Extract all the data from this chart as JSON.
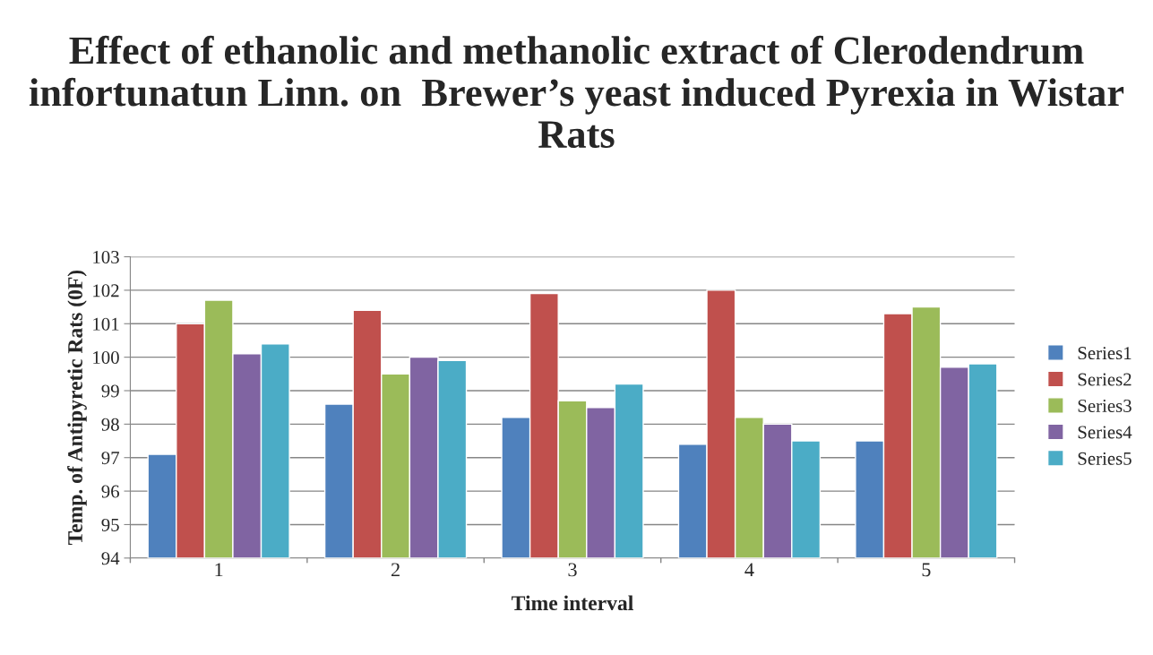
{
  "chart_data": {
    "type": "bar",
    "title": "Effect of ethanolic and methanolic extract of Clerodendrum infortunatun Linn. on  Brewer’s yeast induced Pyrexia in Wistar Rats",
    "xlabel": "Time interval",
    "ylabel": "Temp. of Antipyretic Rats (0F)",
    "categories": [
      "1",
      "2",
      "3",
      "4",
      "5"
    ],
    "series": [
      {
        "name": "Series1",
        "color": "#4f81bd",
        "values": [
          97.1,
          98.6,
          98.2,
          97.4,
          97.5
        ]
      },
      {
        "name": "Series2",
        "color": "#c0504d",
        "values": [
          101.0,
          101.4,
          101.9,
          102.0,
          101.3
        ]
      },
      {
        "name": "Series3",
        "color": "#9bbb59",
        "values": [
          101.7,
          99.5,
          98.7,
          98.2,
          101.5
        ]
      },
      {
        "name": "Series4",
        "color": "#8064a2",
        "values": [
          100.1,
          100.0,
          98.5,
          98.0,
          99.7
        ]
      },
      {
        "name": "Series5",
        "color": "#4bacc6",
        "values": [
          100.4,
          99.9,
          99.2,
          97.5,
          99.8
        ]
      }
    ],
    "ylim": [
      94,
      103
    ],
    "yticks": [
      94,
      95,
      96,
      97,
      98,
      99,
      100,
      101,
      102,
      103
    ],
    "grid": "y",
    "legend": "right"
  }
}
